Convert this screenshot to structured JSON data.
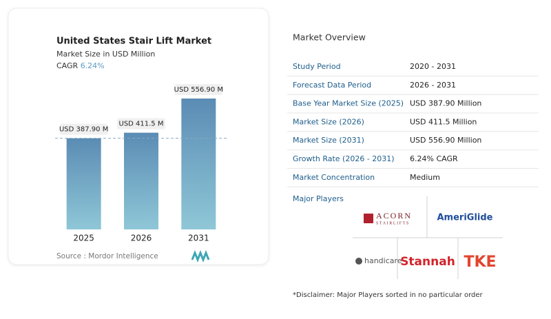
{
  "chart_data": {
    "type": "bar",
    "title": "United States Stair Lift Market",
    "subtitle": "Market Size in USD Million",
    "cagr_label": "CAGR",
    "cagr": "6.24%",
    "categories": [
      "2025",
      "2026",
      "2031"
    ],
    "values": [
      387.9,
      411.5,
      556.9
    ],
    "value_labels": [
      "USD 387.90 M",
      "USD 411.5 M",
      "USD 556.90 M"
    ],
    "color": "#5e8fb6",
    "source": "Source :  Mordor Intelligence"
  },
  "overview": {
    "title": "Market Overview",
    "rows": [
      [
        "Study Period",
        "2020 - 2031"
      ],
      [
        "Forecast Data Period",
        "2026 - 2031"
      ],
      [
        "Base Year Market Size (2025)",
        "USD 387.90 Million"
      ],
      [
        "Market Size (2026)",
        "USD 411.5 Million"
      ],
      [
        "Market Size (2031)",
        "USD 556.90 Million"
      ],
      [
        "Growth Rate (2026 - 2031)",
        "6.24% CAGR"
      ],
      [
        "Market Concentration",
        "Medium"
      ]
    ],
    "players_title": "Major Players",
    "players": [
      "ACORN",
      "STAIRLIFTS",
      "AmeriGlide",
      "handicare",
      "Stannah",
      "TKE"
    ],
    "disclaimer": "*Disclaimer: Major Players sorted in no particular order"
  }
}
